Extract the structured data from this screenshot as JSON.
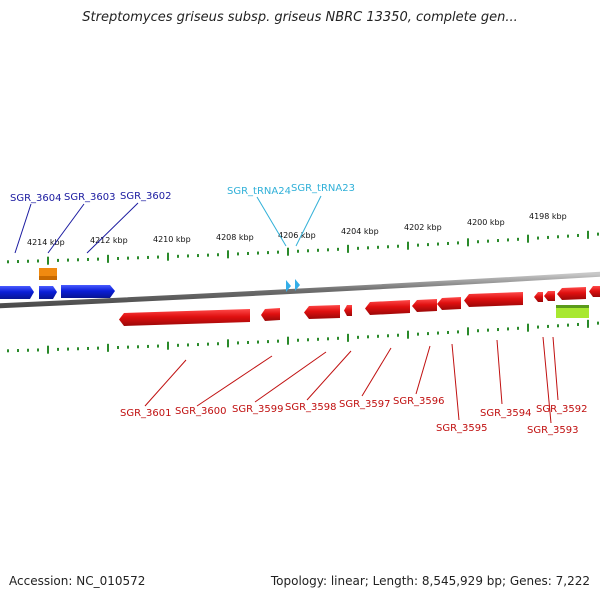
{
  "title": "Streptomyces griseus subsp. griseus NBRC 13350, complete gen...",
  "footer": {
    "accession": "Accession: NC_010572",
    "summary": "Topology: linear; Length: 8,545,929 bp; Genes: 7,222"
  },
  "scale_labels": [
    "4214 kbp",
    "4212 kbp",
    "4210 kbp",
    "4208 kbp",
    "4206 kbp",
    "4204 kbp",
    "4202 kbp",
    "4200 kbp",
    "4198 kbp"
  ],
  "genes_forward": [
    "SGR_3604",
    "SGR_3603",
    "SGR_3602"
  ],
  "trnas": [
    "SGR_tRNA24",
    "SGR_tRNA23"
  ],
  "genes_reverse": [
    "SGR_3601",
    "SGR_3600",
    "SGR_3599",
    "SGR_3598",
    "SGR_3597",
    "SGR_3596",
    "SGR_3595",
    "SGR_3594",
    "SGR_3593",
    "SGR_3592"
  ],
  "colors": {
    "forward_gene": "#0b1ed8",
    "reverse_gene": "#e01010",
    "trna": "#34aee8",
    "backbone": "#7a7a7a",
    "ticks": "#2a8a2a",
    "label_forward": "#1a1aa0",
    "label_trna": "#30b0d8",
    "label_reverse": "#c01010",
    "orange_feature": "#f08a10",
    "green_feature": "#a8e830"
  }
}
